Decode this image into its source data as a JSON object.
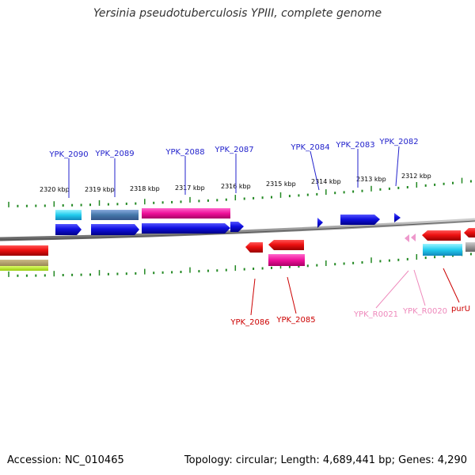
{
  "title": "Yersinia pseudotuberculosis YPIII, complete genome",
  "footer": {
    "accession": "Accession: NC_010465",
    "topology": "Topology: circular; Length: 4,689,441 bp; Genes: 4,290"
  },
  "colors": {
    "cds_plus": "#1010e0",
    "cds_minus": "#ee1111",
    "rrna": "#ee99cc",
    "label_plus": "#2222cc",
    "label_minus": "#cc0000",
    "label_rrna": "#ee88bb",
    "tick": "#228822",
    "backbone": "#888888"
  },
  "scale": {
    "unit": "kbp",
    "labels": [
      {
        "text": "2320 kbp"
      },
      {
        "text": "2319 kbp"
      },
      {
        "text": "2318 kbp"
      },
      {
        "text": "2317 kbp"
      },
      {
        "text": "2316 kbp"
      },
      {
        "text": "2315 kbp"
      },
      {
        "text": "2314 kbp"
      },
      {
        "text": "2313 kbp"
      },
      {
        "text": "2312 kbp"
      }
    ]
  },
  "gene_labels_top": [
    {
      "text": "YPK_2090"
    },
    {
      "text": "YPK_2089"
    },
    {
      "text": "YPK_2088"
    },
    {
      "text": "YPK_2087"
    },
    {
      "text": "YPK_2084"
    },
    {
      "text": "YPK_2083"
    },
    {
      "text": "YPK_2082"
    }
  ],
  "gene_labels_bottom": [
    {
      "text": "YPK_2086",
      "kind": "cds"
    },
    {
      "text": "YPK_2085",
      "kind": "cds"
    },
    {
      "text": "YPK_R0021",
      "kind": "rrna"
    },
    {
      "text": "YPK_R0020",
      "kind": "rrna"
    },
    {
      "text": "purU",
      "kind": "cds"
    }
  ]
}
